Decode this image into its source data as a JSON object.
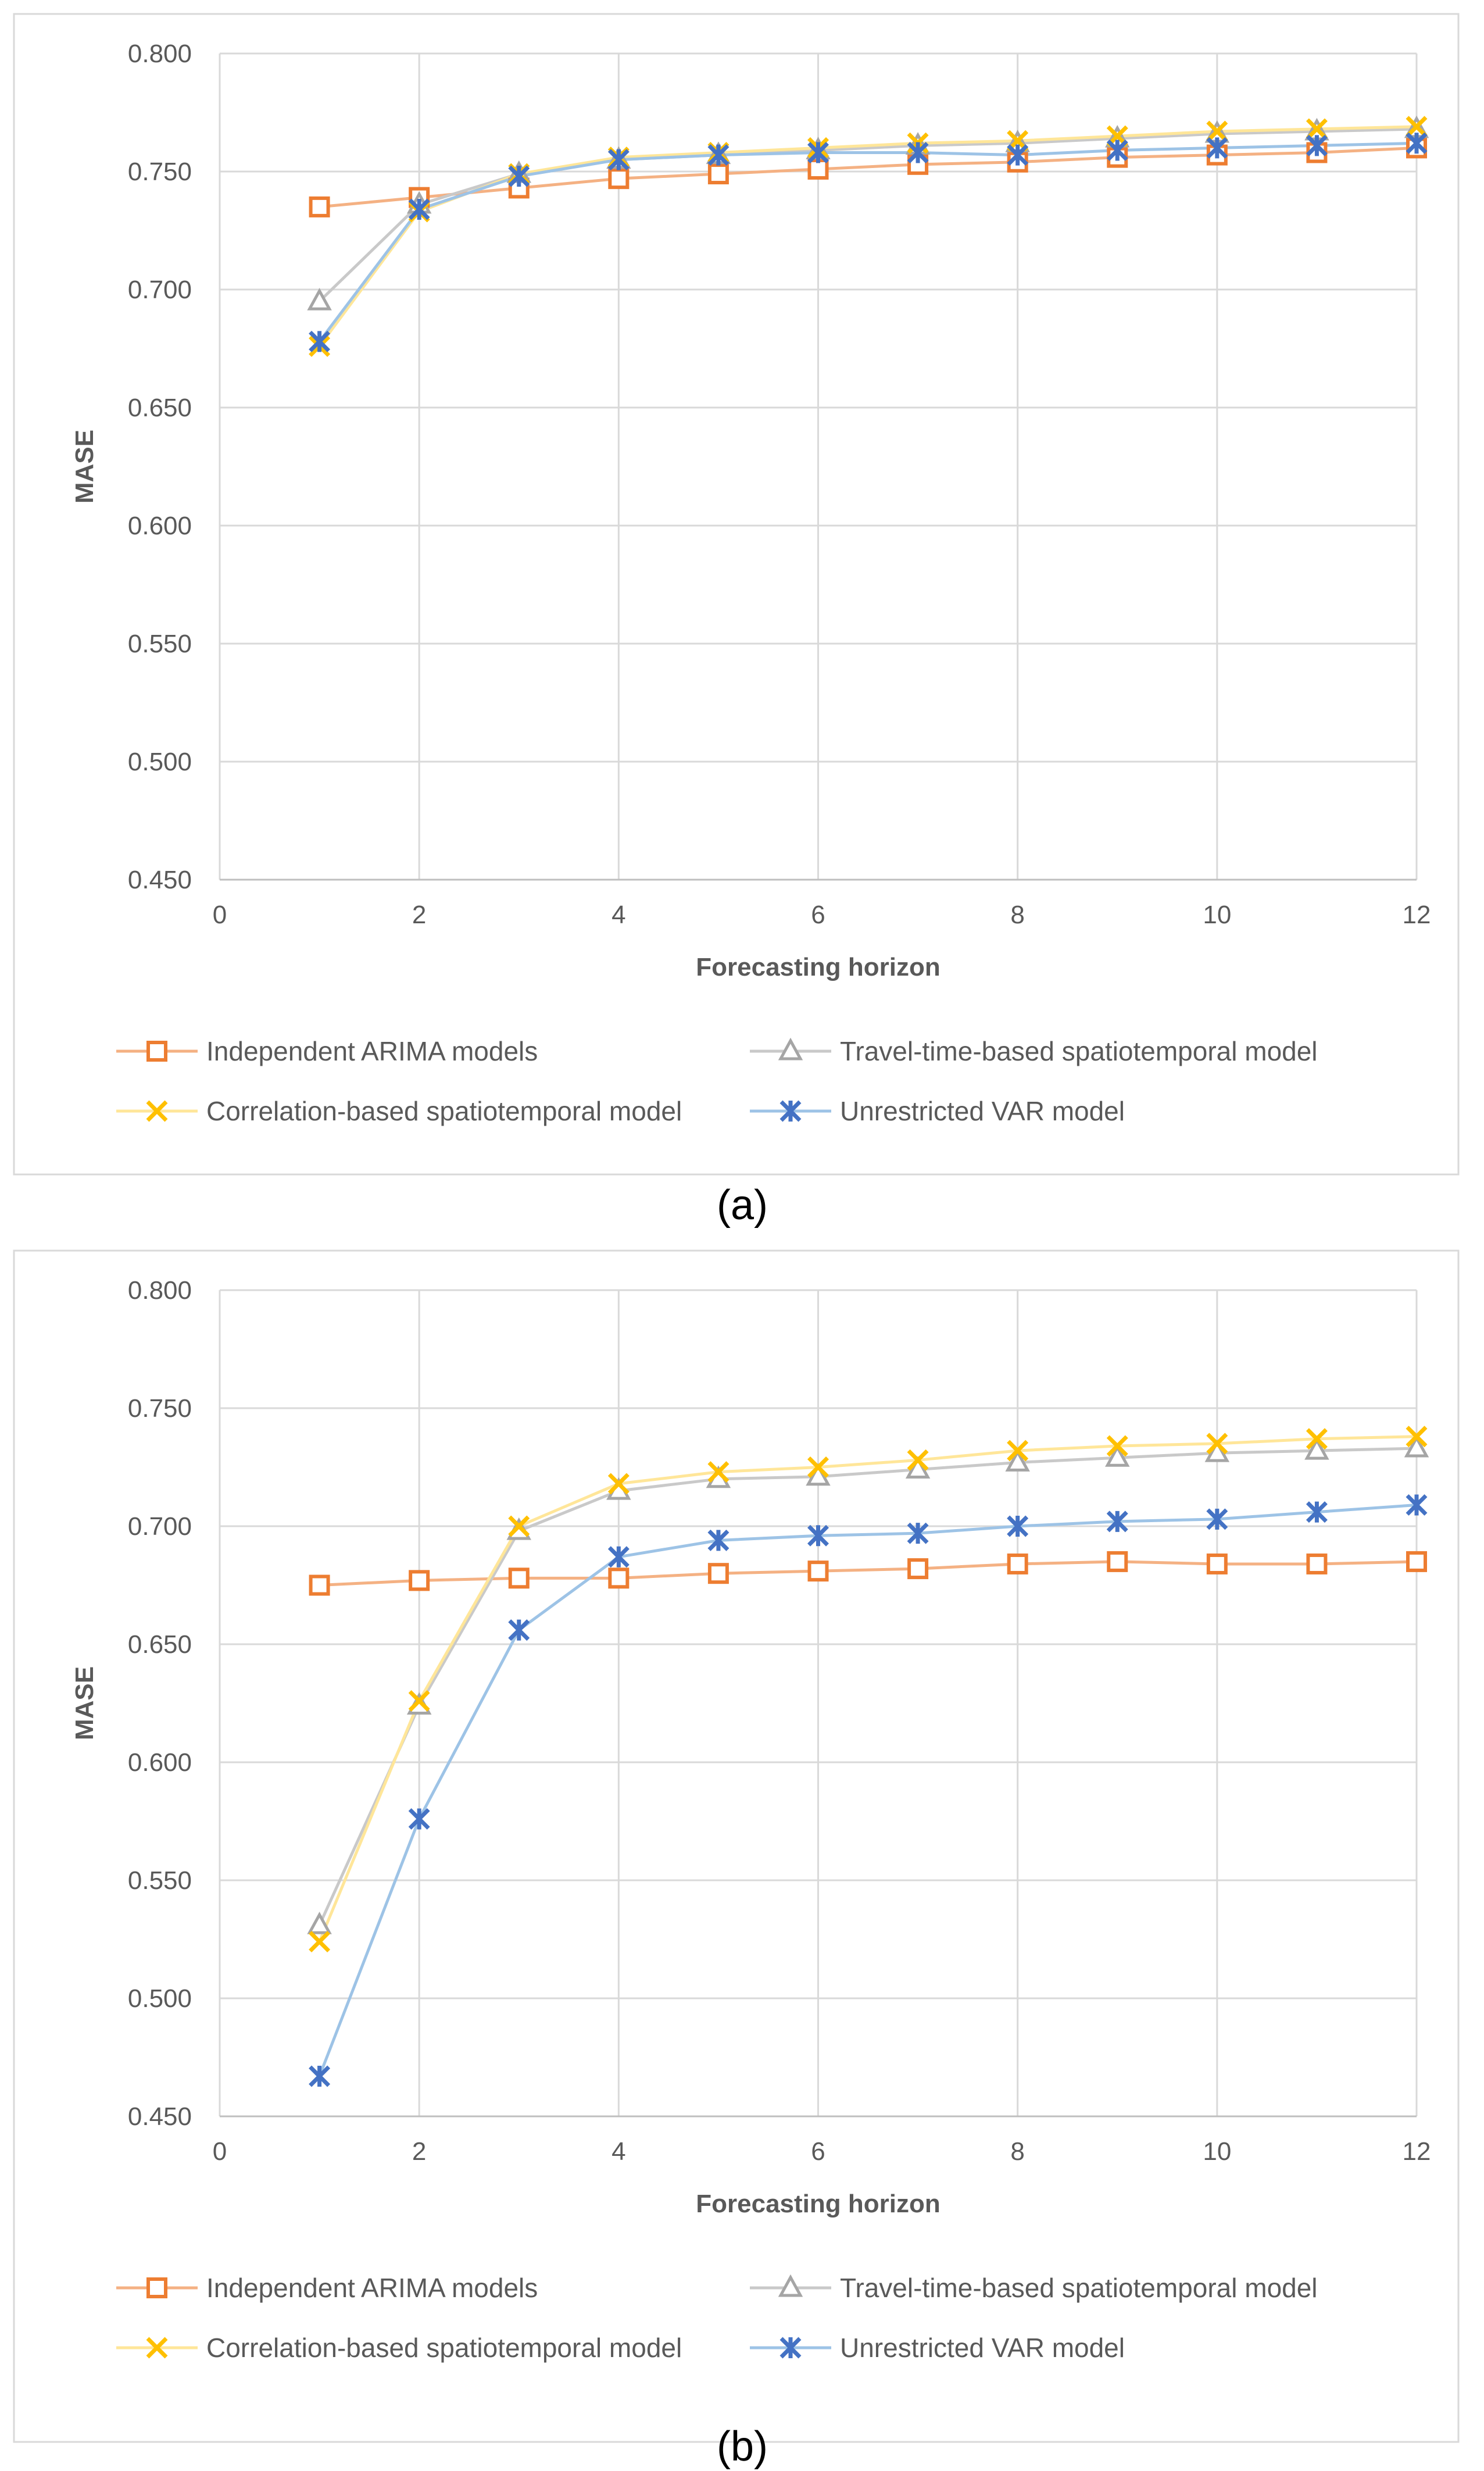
{
  "chart_data": [
    {
      "type": "line",
      "caption": "(a)",
      "xlabel": "Forecasting horizon",
      "ylabel": "MASE",
      "xlim": [
        0,
        12
      ],
      "ylim": [
        0.45,
        0.8
      ],
      "xticks": [
        "0",
        "2",
        "4",
        "6",
        "8",
        "10",
        "12"
      ],
      "yticks": [
        "0.450",
        "0.500",
        "0.550",
        "0.600",
        "0.650",
        "0.700",
        "0.750",
        "0.800"
      ],
      "grid": true,
      "legend": "bottom",
      "x": [
        1,
        2,
        3,
        4,
        5,
        6,
        7,
        8,
        9,
        10,
        11,
        12
      ],
      "series": [
        {
          "name": "Independent ARIMA models",
          "marker": "square",
          "color": "#ED7D31",
          "line_color": "#F4B183",
          "values": [
            0.735,
            0.739,
            0.743,
            0.747,
            0.749,
            0.751,
            0.753,
            0.754,
            0.756,
            0.757,
            0.758,
            0.76
          ]
        },
        {
          "name": "Travel-time-based spatiotemporal model",
          "marker": "triangle",
          "color": "#A5A5A5",
          "line_color": "#C9C9C9",
          "values": [
            0.695,
            0.736,
            0.749,
            0.755,
            0.757,
            0.759,
            0.761,
            0.762,
            0.764,
            0.766,
            0.767,
            0.768
          ]
        },
        {
          "name": "Correlation-based spatiotemporal model",
          "marker": "x",
          "color": "#FFC000",
          "line_color": "#FFE699",
          "values": [
            0.676,
            0.733,
            0.749,
            0.756,
            0.758,
            0.76,
            0.762,
            0.763,
            0.765,
            0.767,
            0.768,
            0.769
          ]
        },
        {
          "name": "Unrestricted VAR model",
          "marker": "star",
          "color": "#4472C4",
          "line_color": "#9DC3E6",
          "values": [
            0.678,
            0.734,
            0.748,
            0.755,
            0.757,
            0.758,
            0.758,
            0.757,
            0.759,
            0.76,
            0.761,
            0.762
          ]
        }
      ]
    },
    {
      "type": "line",
      "caption": "(b)",
      "xlabel": "Forecasting horizon",
      "ylabel": "MASE",
      "xlim": [
        0,
        12
      ],
      "ylim": [
        0.45,
        0.8
      ],
      "xticks": [
        "0",
        "2",
        "4",
        "6",
        "8",
        "10",
        "12"
      ],
      "yticks": [
        "0.450",
        "0.500",
        "0.550",
        "0.600",
        "0.650",
        "0.700",
        "0.750",
        "0.800"
      ],
      "grid": true,
      "legend": "bottom",
      "x": [
        1,
        2,
        3,
        4,
        5,
        6,
        7,
        8,
        9,
        10,
        11,
        12
      ],
      "series": [
        {
          "name": "Independent ARIMA models",
          "marker": "square",
          "color": "#ED7D31",
          "line_color": "#F4B183",
          "values": [
            0.675,
            0.677,
            0.678,
            0.678,
            0.68,
            0.681,
            0.682,
            0.684,
            0.685,
            0.684,
            0.684,
            0.685
          ]
        },
        {
          "name": "Travel-time-based spatiotemporal model",
          "marker": "triangle",
          "color": "#A5A5A5",
          "line_color": "#C9C9C9",
          "values": [
            0.531,
            0.624,
            0.698,
            0.715,
            0.72,
            0.721,
            0.724,
            0.727,
            0.729,
            0.731,
            0.732,
            0.733
          ]
        },
        {
          "name": "Correlation-based spatiotemporal model",
          "marker": "x",
          "color": "#FFC000",
          "line_color": "#FFE699",
          "values": [
            0.524,
            0.626,
            0.7,
            0.718,
            0.723,
            0.725,
            0.728,
            0.732,
            0.734,
            0.735,
            0.737,
            0.738
          ]
        },
        {
          "name": "Unrestricted VAR model",
          "marker": "star",
          "color": "#4472C4",
          "line_color": "#9DC3E6",
          "values": [
            0.467,
            0.576,
            0.656,
            0.687,
            0.694,
            0.696,
            0.697,
            0.7,
            0.702,
            0.703,
            0.706,
            0.709
          ]
        }
      ]
    }
  ]
}
